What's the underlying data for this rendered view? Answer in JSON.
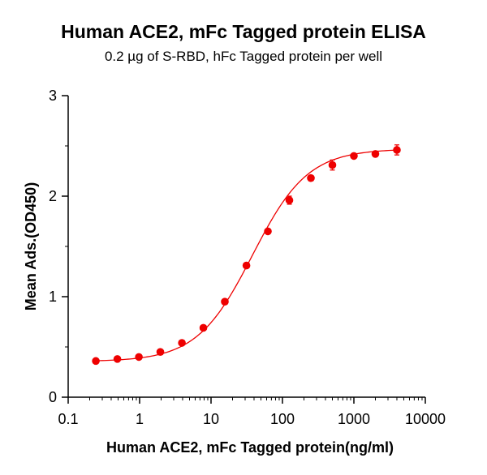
{
  "chart_data": {
    "type": "scatter",
    "title": "Human ACE2, mFc Tagged protein ELISA",
    "subtitle": "0.2 µg of S-RBD, hFc Tagged protein per well",
    "xlabel": "Human ACE2, mFc Tagged protein(ng/ml)",
    "ylabel": "Mean Ads.(OD450)",
    "x_scale": "log",
    "xlim": [
      0.1,
      10000
    ],
    "ylim": [
      0,
      3
    ],
    "x_ticks": [
      "0.1",
      "1",
      "10",
      "100",
      "1000",
      "10000"
    ],
    "y_ticks": [
      "0",
      "1",
      "2",
      "3"
    ],
    "grid": false,
    "colors": {
      "series": "#ee0000",
      "axis": "#000000"
    },
    "series": [
      {
        "points": [
          {
            "x": 0.244,
            "y": 0.36,
            "err": 0.01
          },
          {
            "x": 0.488,
            "y": 0.38,
            "err": 0.01
          },
          {
            "x": 0.977,
            "y": 0.4,
            "err": 0.01
          },
          {
            "x": 1.95,
            "y": 0.45,
            "err": 0.01
          },
          {
            "x": 3.91,
            "y": 0.54,
            "err": 0.01
          },
          {
            "x": 7.81,
            "y": 0.69,
            "err": 0.01
          },
          {
            "x": 15.6,
            "y": 0.95,
            "err": 0.01
          },
          {
            "x": 31.3,
            "y": 1.31,
            "err": 0.01
          },
          {
            "x": 62.5,
            "y": 1.65,
            "err": 0.01
          },
          {
            "x": 125,
            "y": 1.96,
            "err": 0.04
          },
          {
            "x": 250,
            "y": 2.18,
            "err": 0.02
          },
          {
            "x": 500,
            "y": 2.31,
            "err": 0.05
          },
          {
            "x": 1000,
            "y": 2.4,
            "err": 0.02
          },
          {
            "x": 2000,
            "y": 2.42,
            "err": 0.02
          },
          {
            "x": 4000,
            "y": 2.46,
            "err": 0.05
          }
        ],
        "fit": {
          "bottom": 0.355,
          "top": 2.47,
          "ec50": 38,
          "hill": 1.12
        }
      }
    ]
  }
}
